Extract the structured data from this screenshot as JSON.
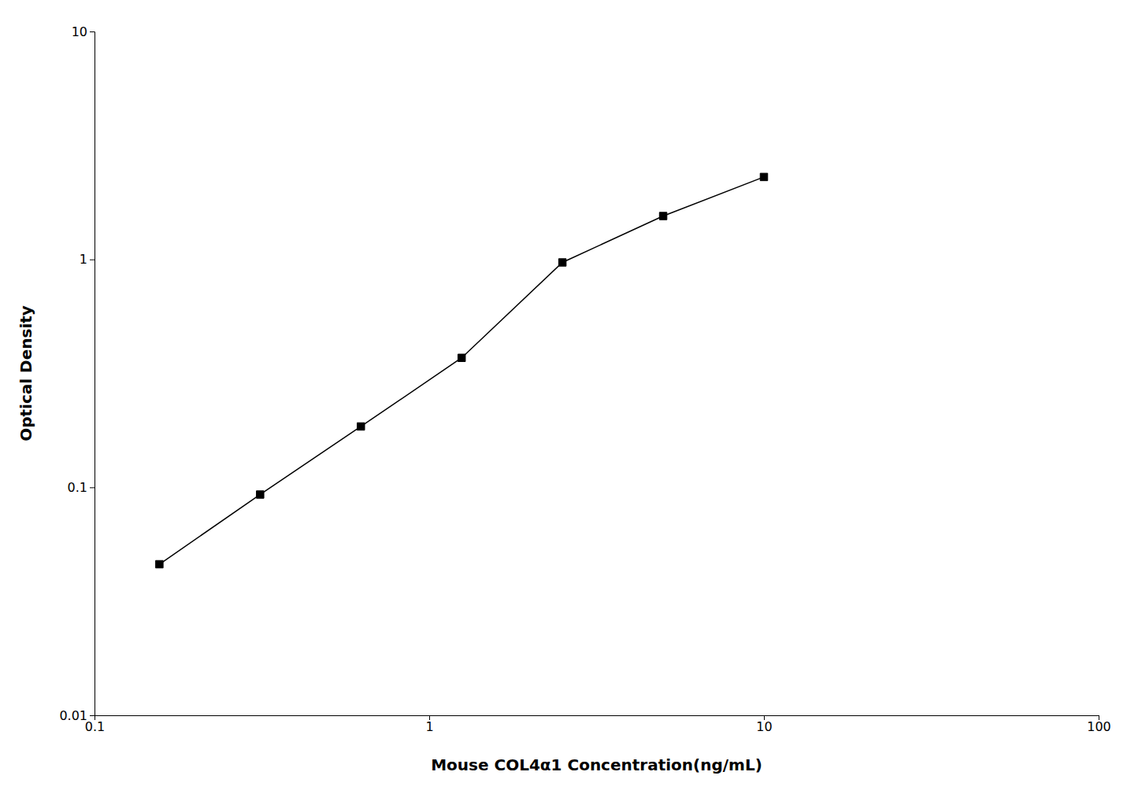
{
  "chart_data": {
    "type": "line",
    "x": [
      0.15625,
      0.3125,
      0.625,
      1.25,
      2.5,
      5.0,
      10.0
    ],
    "values": [
      0.046,
      0.093,
      0.185,
      0.37,
      0.97,
      1.55,
      2.3
    ],
    "xlabel": "Mouse COL4α1 Concentration(ng/mL)",
    "ylabel": "Optical Density",
    "xlim": [
      0.1,
      100
    ],
    "ylim": [
      0.01,
      10
    ],
    "xticks": [
      0.1,
      1,
      10,
      100
    ],
    "yticks": [
      0.01,
      0.1,
      1,
      10
    ],
    "log": true,
    "grid": false,
    "color": "#000000",
    "marker": "square"
  }
}
